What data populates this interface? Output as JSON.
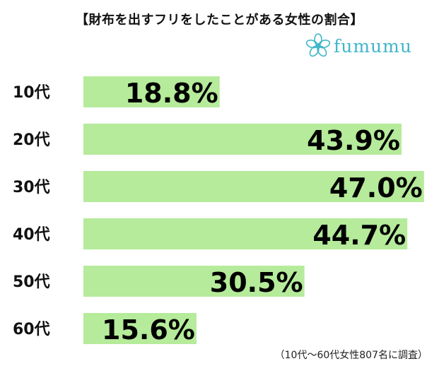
{
  "title": "【財布を出すフリをしたことがある女性の割合】",
  "logo": {
    "text": "fumumu",
    "icon": "flower-icon",
    "color": "#3fb6c8"
  },
  "note": "（10代～60代女性807名に調査）",
  "colors": {
    "bar": "#b5eb9a",
    "text": "#000000"
  },
  "chart_data": {
    "type": "bar",
    "orientation": "horizontal",
    "categories": [
      "10代",
      "20代",
      "30代",
      "40代",
      "50代",
      "60代"
    ],
    "values": [
      18.8,
      43.9,
      47.0,
      44.7,
      30.5,
      15.6
    ],
    "value_labels": [
      "18.8%",
      "43.9%",
      "47.0%",
      "44.7%",
      "30.5%",
      "15.6%"
    ],
    "title": "【財布を出すフリをしたことがある女性の割合】",
    "xlabel": "",
    "ylabel": "",
    "unit": "%",
    "grid": false,
    "legend": "none"
  }
}
